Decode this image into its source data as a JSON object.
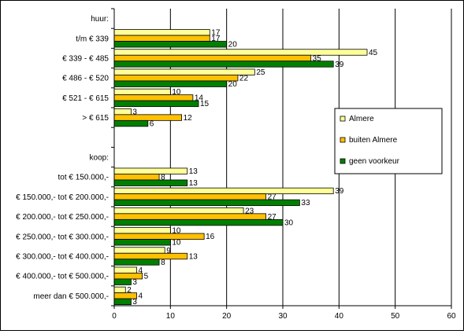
{
  "chart_data": {
    "type": "bar",
    "orientation": "horizontal",
    "title": "",
    "xlabel": "",
    "ylabel": "",
    "xlim": [
      0,
      60
    ],
    "x_ticks": [
      0,
      10,
      20,
      30,
      40,
      50,
      60
    ],
    "grid": "vertical",
    "legend_position": "right",
    "rows": [
      {
        "label": "huur:",
        "kind": "header"
      },
      {
        "label": "t/m € 339",
        "kind": "data"
      },
      {
        "label": "€ 339 - € 485",
        "kind": "data"
      },
      {
        "label": "€ 486 - € 520",
        "kind": "data"
      },
      {
        "label": "€ 521 - € 615",
        "kind": "data"
      },
      {
        "label": "> € 615",
        "kind": "data"
      },
      {
        "label": "",
        "kind": "blank"
      },
      {
        "label": "koop:",
        "kind": "header"
      },
      {
        "label": "tot € 150.000,-",
        "kind": "data"
      },
      {
        "label": "€ 150.000,- tot € 200.000,-",
        "kind": "data"
      },
      {
        "label": "€ 200.000,- tot € 250.000,-",
        "kind": "data"
      },
      {
        "label": "€ 250.000,- tot € 300.000,-",
        "kind": "data"
      },
      {
        "label": "€ 300.000,- tot € 400.000,-",
        "kind": "data"
      },
      {
        "label": "€ 400.000,- tot € 500.000,-",
        "kind": "data"
      },
      {
        "label": "meer dan € 500.000,-",
        "kind": "data"
      }
    ],
    "series": [
      {
        "name": "Almere",
        "color": "#FFFF99",
        "values": [
          null,
          17,
          45,
          25,
          10,
          3,
          null,
          null,
          13,
          39,
          23,
          10,
          9,
          4,
          2
        ]
      },
      {
        "name": "buiten Almere",
        "color": "#FFC000",
        "values": [
          null,
          17,
          35,
          22,
          14,
          12,
          null,
          null,
          8,
          27,
          27,
          16,
          13,
          5,
          4
        ]
      },
      {
        "name": "geen voorkeur",
        "color": "#008000",
        "values": [
          null,
          20,
          39,
          20,
          15,
          6,
          null,
          null,
          13,
          33,
          30,
          10,
          8,
          3,
          3
        ]
      }
    ]
  }
}
